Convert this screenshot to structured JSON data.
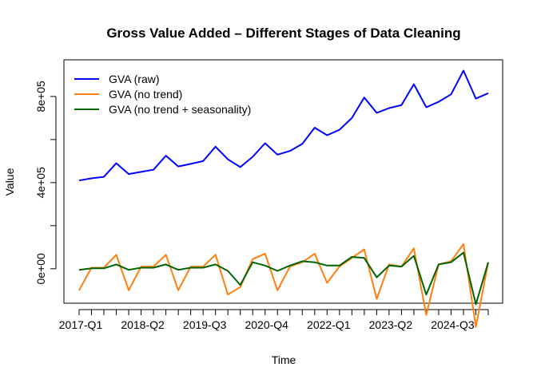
{
  "chart_data": {
    "type": "line",
    "title": "Gross Value Added – Different Stages of Data Cleaning",
    "xlabel": "Time",
    "ylabel": "Value",
    "x_tick_labels": [
      "2017-Q1",
      "2018-Q2",
      "2019-Q3",
      "2020-Q4",
      "2022-Q1",
      "2023-Q2",
      "2024-Q3"
    ],
    "x_tick_label_indices": [
      0,
      5,
      10,
      15,
      20,
      25,
      30
    ],
    "y_ticks": [
      {
        "value": 0,
        "label": "0e+00"
      },
      {
        "value": 400000,
        "label": "4e+05"
      },
      {
        "value": 800000,
        "label": "8e+05"
      }
    ],
    "ylim": [
      -160000,
      970000
    ],
    "n_points": 34,
    "legend_position": "top-left",
    "series": [
      {
        "name": "GVA (raw)",
        "color": "#0000FF",
        "values": [
          410000,
          420000,
          427000,
          490000,
          440000,
          450000,
          460000,
          525000,
          475000,
          487000,
          500000,
          567000,
          508000,
          472000,
          520000,
          583000,
          530000,
          547000,
          580000,
          655000,
          620000,
          645000,
          700000,
          795000,
          724000,
          746000,
          760000,
          857000,
          750000,
          775000,
          810000,
          920000,
          790000,
          815000
        ]
      },
      {
        "name": "GVA (no trend)",
        "color": "#FF7F0E",
        "values": [
          -100000,
          5000,
          5000,
          65000,
          -100000,
          10000,
          10000,
          65000,
          -100000,
          10000,
          10000,
          65000,
          -120000,
          -85000,
          45000,
          70000,
          -100000,
          10000,
          30000,
          70000,
          -65000,
          10000,
          50000,
          90000,
          -140000,
          20000,
          10000,
          95000,
          -215000,
          20000,
          35000,
          115000,
          -270000,
          30000
        ]
      },
      {
        "name": "GVA (no trend + seasonality)",
        "color": "#006400",
        "values": [
          -5000,
          2000,
          2000,
          20000,
          -5000,
          5000,
          5000,
          20000,
          -5000,
          5000,
          5000,
          20000,
          -10000,
          -75000,
          30000,
          15000,
          -10000,
          15000,
          35000,
          30000,
          15000,
          15000,
          55000,
          50000,
          -40000,
          15000,
          10000,
          60000,
          -120000,
          20000,
          30000,
          75000,
          -165000,
          30000
        ]
      }
    ]
  }
}
